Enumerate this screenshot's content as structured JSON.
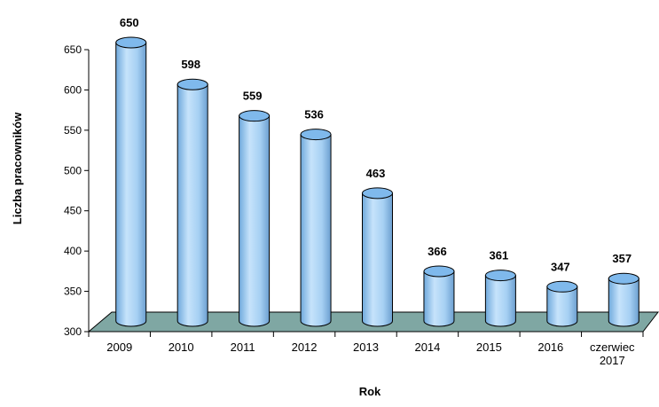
{
  "chart_data": {
    "type": "bar",
    "categories": [
      "2009",
      "2010",
      "2011",
      "2012",
      "2013",
      "2014",
      "2015",
      "2016",
      "czerwiec 2017"
    ],
    "values": [
      650,
      598,
      559,
      536,
      463,
      366,
      361,
      347,
      357
    ],
    "title": "",
    "xlabel": "Rok",
    "ylabel": "Liczba pracowników",
    "ylim": [
      300,
      650
    ],
    "yticks": [
      300,
      350,
      400,
      450,
      500,
      550,
      600,
      650
    ],
    "grid": false,
    "legend": "none",
    "bar_style": "3d-cylinder",
    "colors": {
      "bar_body": "#a8d2f5",
      "bar_top": "#7fb9ec",
      "bar_outline": "#000000",
      "floor": "#7fa7a3"
    }
  }
}
